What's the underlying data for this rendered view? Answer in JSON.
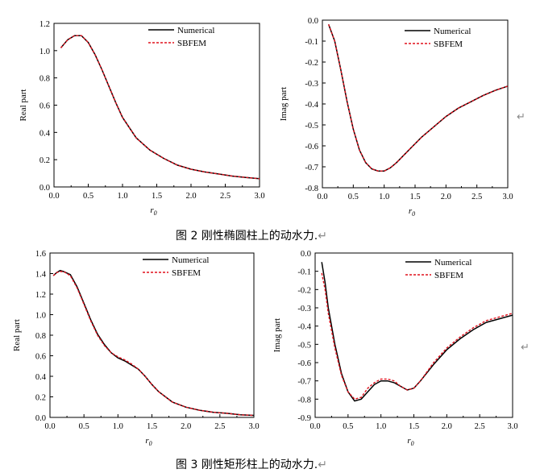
{
  "captions": {
    "fig2": "图 2 刚性椭圆柱上的动水力.",
    "fig3": "图 3 刚性矩形柱上的动水力."
  },
  "return_mark": "↵",
  "chart_data": [
    {
      "type": "line",
      "xlabel": "r",
      "xlabel_sub": "0",
      "ylabel": "Real part",
      "xlim": [
        0,
        3
      ],
      "ylim": [
        0,
        1.2
      ],
      "xticks": [
        "0.0",
        "0.5",
        "1.0",
        "1.5",
        "2.0",
        "2.5",
        "3.0"
      ],
      "yticks": [
        "0.0",
        "0.2",
        "0.4",
        "0.6",
        "0.8",
        "1.0",
        "1.2"
      ],
      "legend": "top-right",
      "series": [
        {
          "name": "Numerical",
          "color": "#000000",
          "style": "solid",
          "x": [
            0.1,
            0.2,
            0.3,
            0.4,
            0.5,
            0.6,
            0.7,
            0.8,
            0.9,
            1.0,
            1.2,
            1.4,
            1.6,
            1.8,
            2.0,
            2.2,
            2.4,
            2.6,
            2.8,
            3.0
          ],
          "y": [
            1.02,
            1.08,
            1.11,
            1.11,
            1.06,
            0.97,
            0.86,
            0.74,
            0.62,
            0.51,
            0.36,
            0.27,
            0.21,
            0.16,
            0.13,
            0.11,
            0.095,
            0.08,
            0.07,
            0.06
          ]
        },
        {
          "name": "SBFEM",
          "color": "#e0101c",
          "style": "dashed",
          "x": [
            0.1,
            0.2,
            0.3,
            0.4,
            0.5,
            0.6,
            0.7,
            0.8,
            0.9,
            1.0,
            1.2,
            1.4,
            1.6,
            1.8,
            2.0,
            2.2,
            2.4,
            2.6,
            2.8,
            3.0
          ],
          "y": [
            1.02,
            1.08,
            1.11,
            1.11,
            1.06,
            0.97,
            0.86,
            0.74,
            0.62,
            0.51,
            0.36,
            0.27,
            0.21,
            0.16,
            0.13,
            0.11,
            0.095,
            0.08,
            0.07,
            0.06
          ]
        }
      ]
    },
    {
      "type": "line",
      "xlabel": "r",
      "xlabel_sub": "0",
      "ylabel": "Imag part",
      "xlim": [
        0,
        3
      ],
      "ylim": [
        -0.8,
        0
      ],
      "xticks": [
        "0.0",
        "0.5",
        "1.0",
        "1.5",
        "2.0",
        "2.5",
        "3.0"
      ],
      "yticks": [
        "0.0",
        "-0.1",
        "-0.2",
        "-0.3",
        "-0.4",
        "-0.5",
        "-0.6",
        "-0.7",
        "-0.8"
      ],
      "legend": "top-right",
      "series": [
        {
          "name": "Numerical",
          "color": "#000000",
          "style": "solid",
          "x": [
            0.1,
            0.2,
            0.3,
            0.4,
            0.5,
            0.6,
            0.7,
            0.8,
            0.9,
            1.0,
            1.1,
            1.2,
            1.4,
            1.6,
            1.8,
            2.0,
            2.2,
            2.4,
            2.6,
            2.8,
            3.0
          ],
          "y": [
            -0.02,
            -0.1,
            -0.24,
            -0.39,
            -0.52,
            -0.62,
            -0.68,
            -0.71,
            -0.72,
            -0.72,
            -0.705,
            -0.68,
            -0.62,
            -0.56,
            -0.51,
            -0.46,
            -0.42,
            -0.39,
            -0.36,
            -0.335,
            -0.315
          ]
        },
        {
          "name": "SBFEM",
          "color": "#e0101c",
          "style": "dashed",
          "x": [
            0.1,
            0.2,
            0.3,
            0.4,
            0.5,
            0.6,
            0.7,
            0.8,
            0.9,
            1.0,
            1.1,
            1.2,
            1.4,
            1.6,
            1.8,
            2.0,
            2.2,
            2.4,
            2.6,
            2.8,
            3.0
          ],
          "y": [
            -0.02,
            -0.1,
            -0.24,
            -0.39,
            -0.52,
            -0.62,
            -0.68,
            -0.71,
            -0.72,
            -0.72,
            -0.705,
            -0.68,
            -0.62,
            -0.56,
            -0.51,
            -0.46,
            -0.42,
            -0.39,
            -0.36,
            -0.335,
            -0.315
          ]
        }
      ]
    },
    {
      "type": "line",
      "xlabel": "r",
      "xlabel_sub": "0",
      "ylabel": "Real part",
      "xlim": [
        0,
        3
      ],
      "ylim": [
        0,
        1.6
      ],
      "xticks": [
        "0.0",
        "0.5",
        "1.0",
        "1.5",
        "2.0",
        "2.5",
        "3.0"
      ],
      "yticks": [
        "0.0",
        "0.2",
        "0.4",
        "0.6",
        "0.8",
        "1.0",
        "1.2",
        "1.4",
        "1.6"
      ],
      "legend": "top-right",
      "series": [
        {
          "name": "Numerical",
          "color": "#000000",
          "style": "solid",
          "x": [
            0.05,
            0.1,
            0.15,
            0.2,
            0.3,
            0.4,
            0.5,
            0.6,
            0.7,
            0.8,
            0.9,
            1.0,
            1.1,
            1.2,
            1.3,
            1.4,
            1.5,
            1.6,
            1.8,
            2.0,
            2.2,
            2.4,
            2.6,
            2.8,
            3.0
          ],
          "y": [
            1.38,
            1.41,
            1.43,
            1.42,
            1.39,
            1.27,
            1.11,
            0.95,
            0.81,
            0.71,
            0.63,
            0.58,
            0.55,
            0.51,
            0.47,
            0.4,
            0.32,
            0.25,
            0.15,
            0.1,
            0.07,
            0.05,
            0.04,
            0.025,
            0.02
          ]
        },
        {
          "name": "SBFEM",
          "color": "#e0101c",
          "style": "dashed",
          "x": [
            0.05,
            0.1,
            0.15,
            0.2,
            0.3,
            0.4,
            0.5,
            0.6,
            0.7,
            0.8,
            0.9,
            1.0,
            1.1,
            1.2,
            1.3,
            1.4,
            1.5,
            1.6,
            1.8,
            2.0,
            2.2,
            2.4,
            2.6,
            2.8,
            3.0
          ],
          "y": [
            1.38,
            1.41,
            1.42,
            1.42,
            1.38,
            1.26,
            1.1,
            0.94,
            0.8,
            0.7,
            0.63,
            0.59,
            0.56,
            0.52,
            0.47,
            0.4,
            0.32,
            0.25,
            0.15,
            0.1,
            0.07,
            0.05,
            0.04,
            0.025,
            0.02
          ]
        }
      ]
    },
    {
      "type": "line",
      "xlabel": "r",
      "xlabel_sub": "0",
      "ylabel": "Imag part",
      "xlim": [
        0,
        3
      ],
      "ylim": [
        -0.9,
        0
      ],
      "xticks": [
        "0.0",
        "0.5",
        "1.0",
        "1.5",
        "2.0",
        "2.5",
        "3.0"
      ],
      "yticks": [
        "0.0",
        "-0.1",
        "-0.2",
        "-0.3",
        "-0.4",
        "-0.5",
        "-0.6",
        "-0.7",
        "-0.8",
        "-0.9"
      ],
      "legend": "top-right",
      "series": [
        {
          "name": "Numerical",
          "color": "#000000",
          "style": "solid",
          "x": [
            0.1,
            0.15,
            0.2,
            0.3,
            0.4,
            0.5,
            0.6,
            0.7,
            0.8,
            0.9,
            1.0,
            1.1,
            1.2,
            1.3,
            1.4,
            1.5,
            1.6,
            1.8,
            2.0,
            2.2,
            2.4,
            2.6,
            2.8,
            3.0
          ],
          "y": [
            -0.05,
            -0.16,
            -0.3,
            -0.5,
            -0.66,
            -0.76,
            -0.81,
            -0.8,
            -0.76,
            -0.72,
            -0.7,
            -0.7,
            -0.71,
            -0.73,
            -0.75,
            -0.74,
            -0.7,
            -0.61,
            -0.53,
            -0.47,
            -0.42,
            -0.38,
            -0.36,
            -0.34
          ]
        },
        {
          "name": "SBFEM",
          "color": "#e0101c",
          "style": "dashed",
          "x": [
            0.1,
            0.15,
            0.2,
            0.3,
            0.4,
            0.5,
            0.6,
            0.7,
            0.8,
            0.9,
            1.0,
            1.1,
            1.2,
            1.3,
            1.4,
            1.5,
            1.6,
            1.8,
            2.0,
            2.2,
            2.4,
            2.6,
            2.8,
            3.0
          ],
          "y": [
            -0.11,
            -0.2,
            -0.33,
            -0.52,
            -0.67,
            -0.76,
            -0.8,
            -0.79,
            -0.74,
            -0.71,
            -0.69,
            -0.69,
            -0.7,
            -0.73,
            -0.75,
            -0.74,
            -0.7,
            -0.6,
            -0.52,
            -0.46,
            -0.41,
            -0.37,
            -0.35,
            -0.33
          ]
        }
      ]
    }
  ]
}
